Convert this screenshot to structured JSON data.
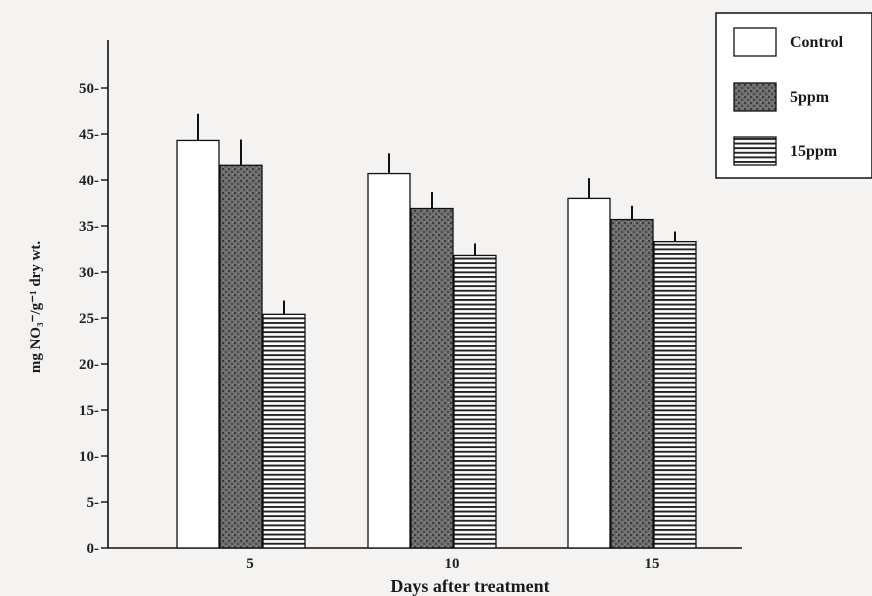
{
  "chart_data": {
    "type": "bar",
    "title": "",
    "xlabel": "Days after treatment",
    "ylabel": "mg NO₃⁻/g⁻¹ dry wt.",
    "categories": [
      "5",
      "10",
      "15"
    ],
    "ylim": [
      0,
      55
    ],
    "yticks": [
      "0",
      "5",
      "10",
      "15",
      "20",
      "25",
      "30",
      "35",
      "40",
      "45",
      "50"
    ],
    "grid": false,
    "legend_position": "top-right",
    "series": [
      {
        "name": "Control",
        "values": [
          44.3,
          40.7,
          38.0
        ],
        "errors": [
          2.9,
          2.2,
          2.2
        ],
        "fill": "none",
        "color": "#ffffff"
      },
      {
        "name": "5ppm",
        "values": [
          41.6,
          36.9,
          35.7
        ],
        "errors": [
          2.8,
          1.8,
          1.5
        ],
        "fill": "stipple",
        "color": "#6e6e6e"
      },
      {
        "name": "15ppm",
        "values": [
          25.4,
          31.8,
          33.3
        ],
        "errors": [
          1.5,
          1.3,
          1.1
        ],
        "fill": "horizontal-lines",
        "color": "#1a1a1a"
      }
    ]
  }
}
